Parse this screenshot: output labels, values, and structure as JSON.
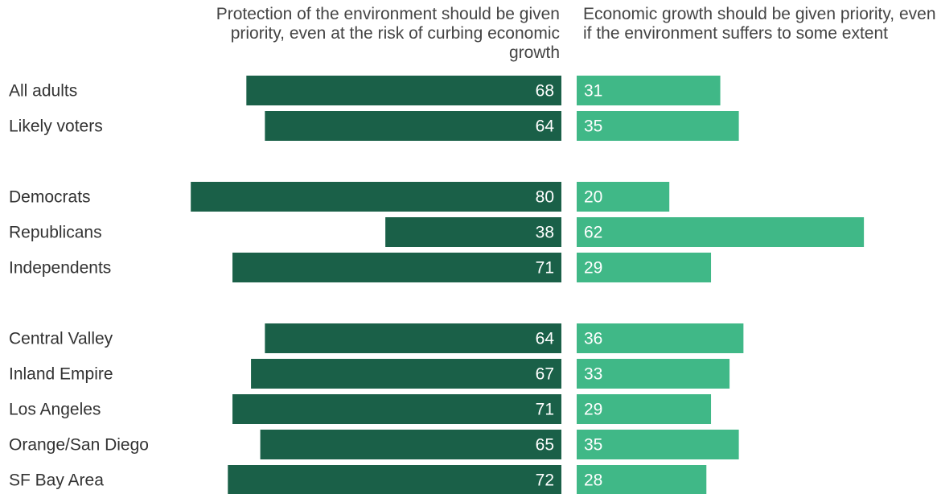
{
  "chart_data": {
    "type": "bar",
    "orientation": "diverging-horizontal",
    "series": [
      {
        "name": "Protection of the environment should be given priority, even at the risk of curbing economic growth",
        "color": "#1a6048",
        "values": [
          68,
          64,
          80,
          38,
          71,
          64,
          67,
          71,
          65,
          72
        ]
      },
      {
        "name": "Economic growth should be given priority, even if the environment suffers to some extent",
        "color": "#40b887",
        "values": [
          31,
          35,
          20,
          62,
          29,
          36,
          33,
          29,
          35,
          28
        ]
      }
    ],
    "categories": [
      "All adults",
      "Likely voters",
      "Democrats",
      "Republicans",
      "Independents",
      "Central Valley",
      "Inland Empire",
      "Los Angeles",
      "Orange/San Diego",
      "SF Bay Area"
    ],
    "groups": [
      [
        "All adults",
        "Likely voters"
      ],
      [
        "Democrats",
        "Republicans",
        "Independents"
      ],
      [
        "Central Valley",
        "Inland Empire",
        "Los Angeles",
        "Orange/San Diego",
        "SF Bay Area"
      ]
    ],
    "headers": {
      "left": "Protection of the environment should be given priority, even at the risk of curbing economic growth",
      "right": "Economic growth should be given priority, even if the environment suffers to some extent"
    },
    "grid": false,
    "legend": "column headers"
  }
}
